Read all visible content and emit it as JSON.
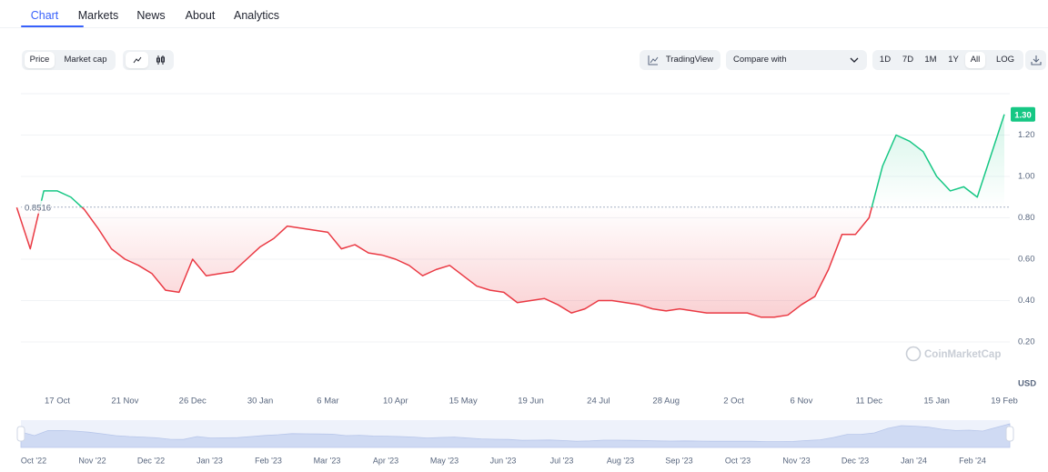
{
  "tabs": [
    "Chart",
    "Markets",
    "News",
    "About",
    "Analytics"
  ],
  "toolbar": {
    "view_toggle": [
      "Price",
      "Market cap"
    ],
    "tradingview": "TradingView",
    "compare": "Compare with",
    "ranges": [
      "1D",
      "7D",
      "1M",
      "1Y",
      "All"
    ],
    "log": "LOG"
  },
  "chart_data": {
    "type": "line",
    "x": [
      "26 Sep",
      "3 Oct",
      "10 Oct",
      "17 Oct",
      "24 Oct",
      "31 Oct",
      "7 Nov",
      "14 Nov",
      "21 Nov",
      "28 Nov",
      "5 Dec",
      "12 Dec",
      "19 Dec",
      "26 Dec",
      "2 Jan",
      "9 Jan",
      "16 Jan",
      "23 Jan",
      "30 Jan",
      "6 Feb",
      "13 Feb",
      "20 Feb",
      "27 Feb",
      "6 Mar",
      "13 Mar",
      "20 Mar",
      "27 Mar",
      "3 Apr",
      "10 Apr",
      "17 Apr",
      "24 Apr",
      "1 May",
      "8 May",
      "15 May",
      "22 May",
      "29 May",
      "5 Jun",
      "12 Jun",
      "19 Jun",
      "26 Jun",
      "3 Jul",
      "10 Jul",
      "17 Jul",
      "24 Jul",
      "31 Jul",
      "7 Aug",
      "14 Aug",
      "21 Aug",
      "28 Aug",
      "4 Sep",
      "11 Sep",
      "18 Sep",
      "25 Sep",
      "2 Oct",
      "9 Oct",
      "16 Oct",
      "23 Oct",
      "30 Oct",
      "6 Nov",
      "13 Nov",
      "20 Nov",
      "27 Nov",
      "4 Dec",
      "11 Dec",
      "18 Dec",
      "25 Dec",
      "1 Jan",
      "8 Jan",
      "15 Jan",
      "22 Jan",
      "29 Jan",
      "5 Feb",
      "12 Feb",
      "19 Feb"
    ],
    "values": [
      0.85,
      0.65,
      0.93,
      0.93,
      0.9,
      0.84,
      0.75,
      0.65,
      0.6,
      0.57,
      0.53,
      0.45,
      0.44,
      0.6,
      0.52,
      0.53,
      0.54,
      0.6,
      0.66,
      0.7,
      0.76,
      0.75,
      0.74,
      0.73,
      0.65,
      0.67,
      0.63,
      0.62,
      0.6,
      0.57,
      0.52,
      0.55,
      0.57,
      0.52,
      0.47,
      0.45,
      0.44,
      0.39,
      0.4,
      0.41,
      0.38,
      0.34,
      0.36,
      0.4,
      0.4,
      0.39,
      0.38,
      0.36,
      0.35,
      0.36,
      0.35,
      0.34,
      0.34,
      0.34,
      0.34,
      0.32,
      0.32,
      0.33,
      0.38,
      0.42,
      0.55,
      0.72,
      0.72,
      0.8,
      1.05,
      1.2,
      1.17,
      1.12,
      1.0,
      0.93,
      0.95,
      0.9,
      1.1,
      1.3
    ],
    "xticks": [
      "17 Oct",
      "21 Nov",
      "26 Dec",
      "30 Jan",
      "6 Mar",
      "10 Apr",
      "15 May",
      "19 Jun",
      "24 Jul",
      "28 Aug",
      "2 Oct",
      "6 Nov",
      "11 Dec",
      "15 Jan",
      "19 Feb"
    ],
    "ylim": [
      0,
      1.4
    ],
    "yticks": [
      {
        "value": 0.2,
        "label": "0.20"
      },
      {
        "value": 0.4,
        "label": "0.40"
      },
      {
        "value": 0.6,
        "label": "0.60"
      },
      {
        "value": 0.8,
        "label": "0.80"
      },
      {
        "value": 1.0,
        "label": "1.00"
      },
      {
        "value": 1.2,
        "label": "1.20"
      }
    ],
    "grid": true,
    "baseline": 0.8516,
    "current_price": {
      "value": 1.3,
      "label": "1.30"
    },
    "y_unit": "USD",
    "watermark": "CoinMarketCap",
    "up_color": "#16c784",
    "down_color": "#ea3943"
  },
  "navigator": {
    "labels": [
      "Oct '22",
      "Nov '22",
      "Dec '22",
      "Jan '23",
      "Feb '23",
      "Mar '23",
      "Apr '23",
      "May '23",
      "Jun '23",
      "Jul '23",
      "Aug '23",
      "Sep '23",
      "Oct '23",
      "Nov '23",
      "Dec '23",
      "Jan '24",
      "Feb '24"
    ]
  }
}
